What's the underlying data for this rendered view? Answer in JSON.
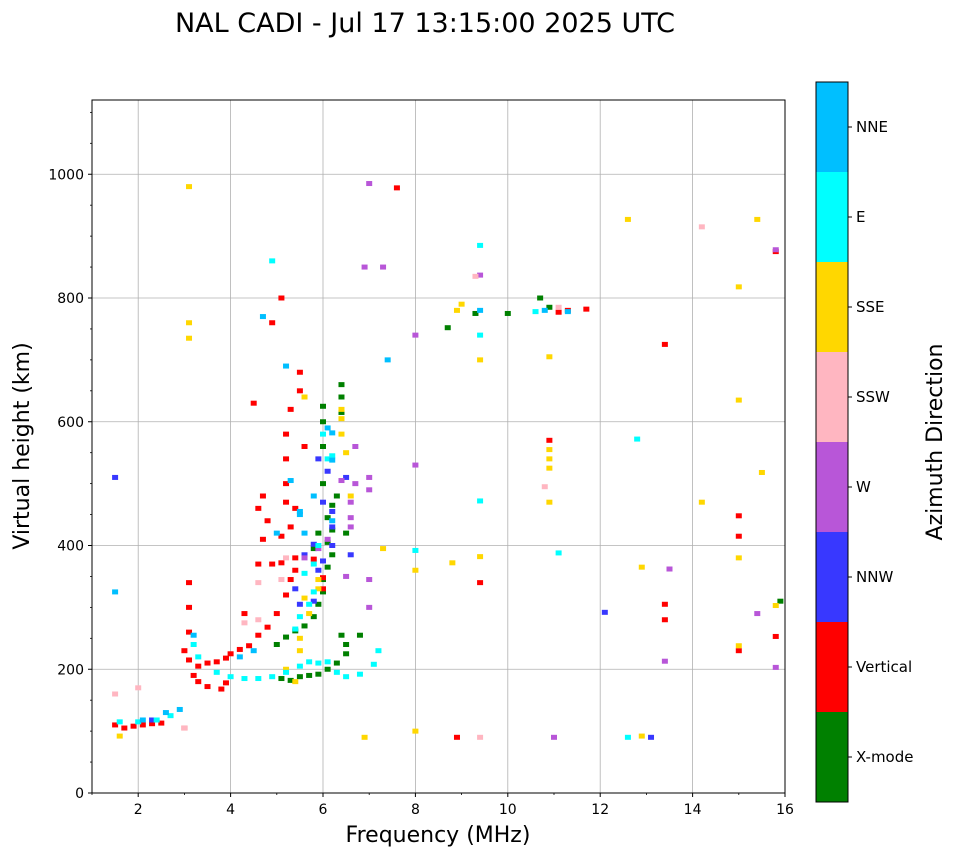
{
  "chart_data": {
    "type": "scatter",
    "title": "NAL CADI - Jul 17 13:15:00 2025 UTC",
    "xlabel": "Frequency (MHz)",
    "ylabel": "Virtual height (km)",
    "xlim": [
      1,
      16
    ],
    "ylim": [
      0,
      1120
    ],
    "grid": true,
    "xticks": [
      2,
      4,
      6,
      8,
      10,
      12,
      14,
      16
    ],
    "yticks": [
      0,
      200,
      400,
      600,
      800,
      1000
    ],
    "xtick_labels": [
      "2",
      "4",
      "6",
      "8",
      "10",
      "12",
      "14",
      "16"
    ],
    "ytick_labels": [
      "0",
      "200",
      "400",
      "600",
      "800",
      "1000"
    ],
    "colorbar": {
      "title": "Azimuth Direction",
      "categories": [
        "X-mode",
        "Vertical",
        "NNW",
        "W",
        "SSW",
        "SSE",
        "E",
        "NNE"
      ],
      "colors": [
        "#008000",
        "#ff0000",
        "#3838ff",
        "#b856d8",
        "#ffb6c1",
        "#ffd700",
        "#00ffff",
        "#00bfff"
      ]
    },
    "series": [
      {
        "name": "X-mode",
        "points": [
          [
            5.1,
            185
          ],
          [
            5.3,
            182
          ],
          [
            5.5,
            188
          ],
          [
            5.7,
            190
          ],
          [
            5.9,
            192
          ],
          [
            6.1,
            200
          ],
          [
            6.3,
            210
          ],
          [
            6.5,
            225
          ],
          [
            6.5,
            240
          ],
          [
            6.4,
            255
          ],
          [
            5.0,
            240
          ],
          [
            5.2,
            252
          ],
          [
            5.4,
            262
          ],
          [
            5.6,
            270
          ],
          [
            5.8,
            285
          ],
          [
            5.9,
            305
          ],
          [
            6.0,
            325
          ],
          [
            6.0,
            345
          ],
          [
            6.1,
            365
          ],
          [
            6.2,
            385
          ],
          [
            6.1,
            405
          ],
          [
            6.2,
            425
          ],
          [
            6.1,
            445
          ],
          [
            6.2,
            465
          ],
          [
            6.3,
            480
          ],
          [
            6.0,
            500
          ],
          [
            5.9,
            420
          ],
          [
            6.0,
            560
          ],
          [
            6.0,
            600
          ],
          [
            6.0,
            625
          ],
          [
            6.4,
            640
          ],
          [
            6.4,
            660
          ],
          [
            6.4,
            615
          ],
          [
            10.0,
            775
          ],
          [
            10.7,
            800
          ],
          [
            10.9,
            785
          ],
          [
            9.3,
            775
          ],
          [
            8.7,
            752
          ],
          [
            15.9,
            310
          ],
          [
            6.8,
            255
          ],
          [
            6.5,
            420
          ],
          [
            5.8,
            395
          ]
        ]
      },
      {
        "name": "Vertical",
        "points": [
          [
            1.5,
            110
          ],
          [
            1.7,
            105
          ],
          [
            1.9,
            108
          ],
          [
            2.1,
            110
          ],
          [
            2.3,
            112
          ],
          [
            2.5,
            113
          ],
          [
            3.0,
            105
          ],
          [
            3.2,
            190
          ],
          [
            3.3,
            180
          ],
          [
            3.5,
            172
          ],
          [
            3.8,
            168
          ],
          [
            3.9,
            178
          ],
          [
            3.3,
            205
          ],
          [
            3.5,
            210
          ],
          [
            3.7,
            212
          ],
          [
            3.9,
            218
          ],
          [
            4.0,
            225
          ],
          [
            4.2,
            232
          ],
          [
            4.4,
            238
          ],
          [
            4.6,
            255
          ],
          [
            4.8,
            268
          ],
          [
            5.0,
            290
          ],
          [
            5.2,
            320
          ],
          [
            5.3,
            345
          ],
          [
            5.4,
            360
          ],
          [
            5.4,
            380
          ],
          [
            4.9,
            370
          ],
          [
            5.1,
            372
          ],
          [
            4.6,
            370
          ],
          [
            4.7,
            410
          ],
          [
            4.8,
            440
          ],
          [
            4.6,
            460
          ],
          [
            4.7,
            480
          ],
          [
            5.1,
            415
          ],
          [
            5.3,
            430
          ],
          [
            5.2,
            470
          ],
          [
            5.4,
            460
          ],
          [
            5.2,
            500
          ],
          [
            5.2,
            540
          ],
          [
            5.2,
            580
          ],
          [
            5.3,
            620
          ],
          [
            5.5,
            650
          ],
          [
            5.5,
            680
          ],
          [
            4.5,
            630
          ],
          [
            4.9,
            760
          ],
          [
            5.1,
            800
          ],
          [
            4.3,
            290
          ],
          [
            3.1,
            340
          ],
          [
            3.1,
            300
          ],
          [
            3.1,
            260
          ],
          [
            3.0,
            230
          ],
          [
            3.1,
            215
          ],
          [
            6.0,
            330
          ],
          [
            5.8,
            378
          ],
          [
            7.6,
            978
          ],
          [
            8.9,
            90
          ],
          [
            9.4,
            340
          ],
          [
            10.9,
            570
          ],
          [
            11.1,
            777
          ],
          [
            11.3,
            780
          ],
          [
            11.7,
            782
          ],
          [
            13.4,
            725
          ],
          [
            13.4,
            305
          ],
          [
            13.4,
            280
          ],
          [
            15.0,
            448
          ],
          [
            15.0,
            415
          ],
          [
            15.0,
            230
          ],
          [
            15.8,
            875
          ],
          [
            15.8,
            253
          ],
          [
            6.0,
            348
          ],
          [
            5.6,
            560
          ]
        ]
      },
      {
        "name": "NNW",
        "points": [
          [
            1.5,
            510
          ],
          [
            2.3,
            118
          ],
          [
            5.5,
            305
          ],
          [
            5.6,
            385
          ],
          [
            5.8,
            402
          ],
          [
            5.9,
            360
          ],
          [
            6.2,
            400
          ],
          [
            6.0,
            375
          ],
          [
            6.0,
            470
          ],
          [
            6.2,
            430
          ],
          [
            6.2,
            455
          ],
          [
            6.5,
            510
          ],
          [
            6.6,
            385
          ],
          [
            5.9,
            540
          ],
          [
            6.1,
            520
          ],
          [
            12.1,
            292
          ],
          [
            13.1,
            90
          ],
          [
            5.8,
            310
          ],
          [
            5.4,
            330
          ]
        ]
      },
      {
        "name": "W",
        "points": [
          [
            5.6,
            380
          ],
          [
            5.9,
            395
          ],
          [
            6.1,
            410
          ],
          [
            6.4,
            505
          ],
          [
            6.6,
            470
          ],
          [
            6.6,
            430
          ],
          [
            6.6,
            445
          ],
          [
            6.7,
            500
          ],
          [
            6.5,
            350
          ],
          [
            7.0,
            345
          ],
          [
            7.0,
            300
          ],
          [
            7.0,
            490
          ],
          [
            7.0,
            510
          ],
          [
            7.0,
            985
          ],
          [
            6.9,
            850
          ],
          [
            7.3,
            850
          ],
          [
            8.0,
            530
          ],
          [
            8.0,
            740
          ],
          [
            9.4,
            837
          ],
          [
            11.0,
            90
          ],
          [
            13.4,
            213
          ],
          [
            13.5,
            362
          ],
          [
            15.4,
            290
          ],
          [
            15.8,
            203
          ],
          [
            15.8,
            878
          ],
          [
            6.7,
            560
          ]
        ]
      },
      {
        "name": "SSW",
        "points": [
          [
            1.5,
            160
          ],
          [
            2.0,
            170
          ],
          [
            3.0,
            105
          ],
          [
            4.3,
            275
          ],
          [
            4.6,
            280
          ],
          [
            5.1,
            345
          ],
          [
            5.2,
            380
          ],
          [
            9.4,
            90
          ],
          [
            9.3,
            835
          ],
          [
            10.8,
            495
          ],
          [
            11.1,
            785
          ],
          [
            14.2,
            915
          ],
          [
            4.6,
            340
          ]
        ]
      },
      {
        "name": "SSE",
        "points": [
          [
            1.6,
            92
          ],
          [
            3.1,
            980
          ],
          [
            3.1,
            760
          ],
          [
            3.1,
            735
          ],
          [
            5.4,
            180
          ],
          [
            5.2,
            200
          ],
          [
            5.5,
            230
          ],
          [
            5.5,
            250
          ],
          [
            5.7,
            290
          ],
          [
            5.6,
            315
          ],
          [
            5.9,
            330
          ],
          [
            5.9,
            345
          ],
          [
            6.4,
            620
          ],
          [
            6.4,
            605
          ],
          [
            6.5,
            550
          ],
          [
            6.6,
            480
          ],
          [
            6.9,
            90
          ],
          [
            7.3,
            395
          ],
          [
            8.0,
            100
          ],
          [
            8.0,
            360
          ],
          [
            8.8,
            372
          ],
          [
            9.0,
            790
          ],
          [
            8.9,
            780
          ],
          [
            9.4,
            700
          ],
          [
            9.4,
            382
          ],
          [
            10.9,
            555
          ],
          [
            10.9,
            540
          ],
          [
            10.9,
            525
          ],
          [
            10.9,
            470
          ],
          [
            10.9,
            705
          ],
          [
            12.6,
            927
          ],
          [
            12.9,
            92
          ],
          [
            12.9,
            365
          ],
          [
            14.2,
            470
          ],
          [
            15.0,
            818
          ],
          [
            15.0,
            635
          ],
          [
            15.0,
            380
          ],
          [
            15.0,
            238
          ],
          [
            15.4,
            927
          ],
          [
            15.5,
            518
          ],
          [
            15.8,
            303
          ],
          [
            6.4,
            580
          ],
          [
            5.6,
            640
          ]
        ]
      },
      {
        "name": "E",
        "points": [
          [
            1.6,
            115
          ],
          [
            2.0,
            115
          ],
          [
            2.4,
            118
          ],
          [
            2.7,
            125
          ],
          [
            3.7,
            195
          ],
          [
            4.0,
            188
          ],
          [
            4.3,
            185
          ],
          [
            4.6,
            185
          ],
          [
            4.9,
            188
          ],
          [
            5.2,
            195
          ],
          [
            5.5,
            205
          ],
          [
            5.7,
            212
          ],
          [
            5.9,
            210
          ],
          [
            6.1,
            212
          ],
          [
            6.3,
            195
          ],
          [
            6.5,
            188
          ],
          [
            6.8,
            192
          ],
          [
            7.1,
            208
          ],
          [
            7.2,
            230
          ],
          [
            5.4,
            265
          ],
          [
            5.5,
            285
          ],
          [
            5.7,
            305
          ],
          [
            5.8,
            325
          ],
          [
            5.6,
            355
          ],
          [
            5.8,
            370
          ],
          [
            5.9,
            400
          ],
          [
            6.1,
            540
          ],
          [
            6.0,
            580
          ],
          [
            6.2,
            545
          ],
          [
            8.0,
            392
          ],
          [
            9.4,
            740
          ],
          [
            9.4,
            885
          ],
          [
            9.4,
            472
          ],
          [
            10.6,
            778
          ],
          [
            11.1,
            388
          ],
          [
            12.8,
            572
          ],
          [
            12.6,
            90
          ],
          [
            4.9,
            860
          ],
          [
            3.3,
            220
          ],
          [
            3.2,
            240
          ]
        ]
      },
      {
        "name": "NNE",
        "points": [
          [
            1.5,
            325
          ],
          [
            2.1,
            118
          ],
          [
            2.6,
            130
          ],
          [
            2.9,
            135
          ],
          [
            3.2,
            255
          ],
          [
            4.2,
            220
          ],
          [
            4.5,
            230
          ],
          [
            4.7,
            770
          ],
          [
            5.2,
            690
          ],
          [
            5.3,
            505
          ],
          [
            5.5,
            450
          ],
          [
            5.6,
            420
          ],
          [
            5.8,
            480
          ],
          [
            6.2,
            538
          ],
          [
            6.2,
            582
          ],
          [
            6.1,
            590
          ],
          [
            6.2,
            440
          ],
          [
            7.4,
            700
          ],
          [
            9.4,
            780
          ],
          [
            10.8,
            780
          ],
          [
            11.3,
            778
          ],
          [
            5.0,
            420
          ],
          [
            5.5,
            455
          ]
        ]
      }
    ]
  }
}
